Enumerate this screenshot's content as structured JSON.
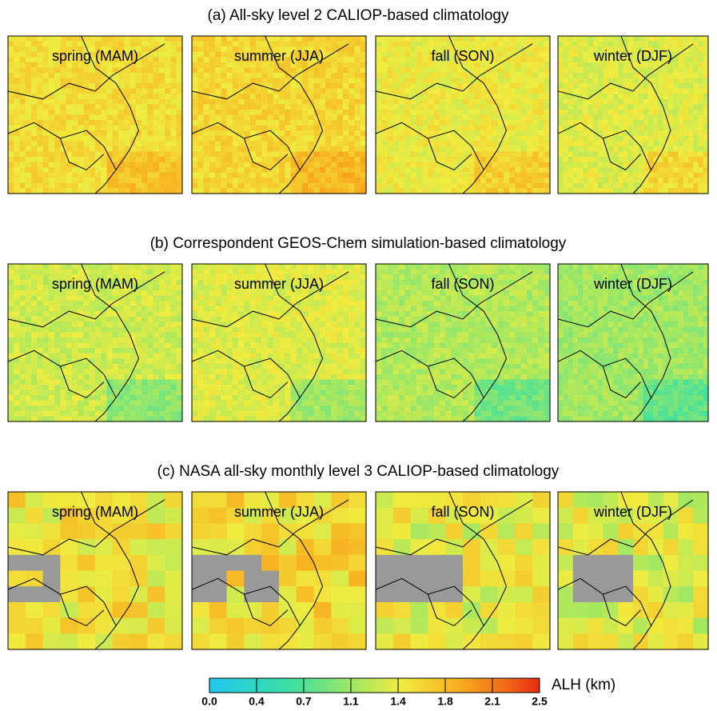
{
  "rows": [
    {
      "title": "(a) All-sky level 2 CALIOP-based climatology",
      "panels": [
        "spring (MAM)",
        "summer (JJA)",
        "fall (SON)",
        "winter (DJF)"
      ]
    },
    {
      "title": "(b) Correspondent GEOS-Chem simulation-based climatology",
      "panels": [
        "spring (MAM)",
        "summer (JJA)",
        "fall (SON)",
        "winter (DJF)"
      ]
    },
    {
      "title": "(c) NASA all-sky monthly  level 3 CALIOP-based climatology",
      "panels": [
        "spring (MAM)",
        "summer (JJA)",
        "fall (SON)",
        "winter (DJF)"
      ]
    }
  ],
  "colorbar": {
    "label": "ALH (km)",
    "lim": [
      0,
      2.5
    ],
    "ticks": [
      {
        "value": 0,
        "label": "0.0"
      },
      {
        "value": 0.357,
        "label": "0.4"
      },
      {
        "value": 0.714,
        "label": "0.7"
      },
      {
        "value": 1.071,
        "label": "1.1"
      },
      {
        "value": 1.429,
        "label": "1.4"
      },
      {
        "value": 1.786,
        "label": "1.8"
      },
      {
        "value": 2.143,
        "label": "2.1"
      },
      {
        "value": 2.5,
        "label": "2.5"
      }
    ]
  }
}
